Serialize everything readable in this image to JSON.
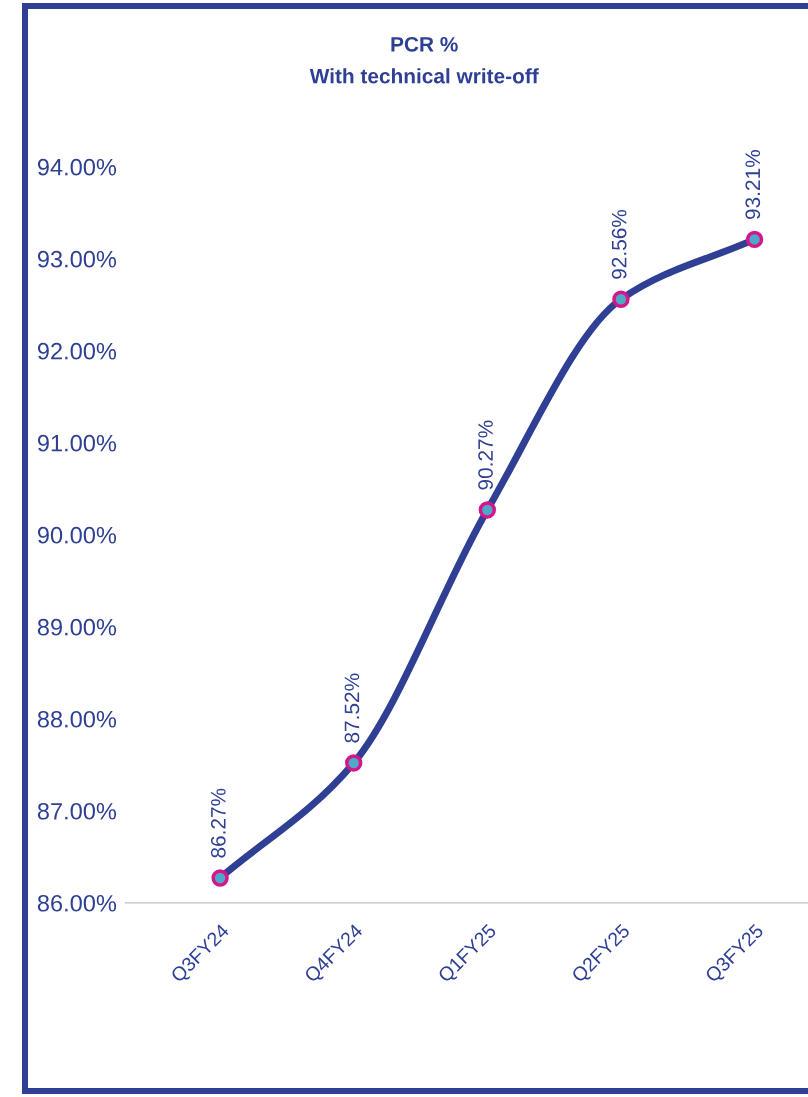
{
  "chart_data": {
    "type": "line",
    "title": "PCR %",
    "subtitle": "With technical write-off",
    "categories": [
      "Q3FY24",
      "Q4FY24",
      "Q1FY25",
      "Q2FY25",
      "Q3FY25"
    ],
    "series": [
      {
        "color": "#2e3f94",
        "values": [
          86.27,
          87.52,
          90.27,
          92.56,
          93.21
        ],
        "value_labels": [
          "86.27%",
          "87.52%",
          "90.27%",
          "92.56%",
          "93.21%"
        ]
      }
    ],
    "ylim": [
      86,
      94
    ],
    "yticks": [
      {
        "value": 86,
        "label": "86.00%"
      },
      {
        "value": 87,
        "label": "87.00%"
      },
      {
        "value": 88,
        "label": "88.00%"
      },
      {
        "value": 89,
        "label": "89.00%"
      },
      {
        "value": 90,
        "label": "90.00%"
      },
      {
        "value": 91,
        "label": "91.00%"
      },
      {
        "value": 92,
        "label": "92.00%"
      },
      {
        "value": 93,
        "label": "93.00%"
      },
      {
        "value": 94,
        "label": "94.00%"
      }
    ],
    "marker": "circle",
    "line_style": "solid",
    "grid": false,
    "legend": false
  }
}
